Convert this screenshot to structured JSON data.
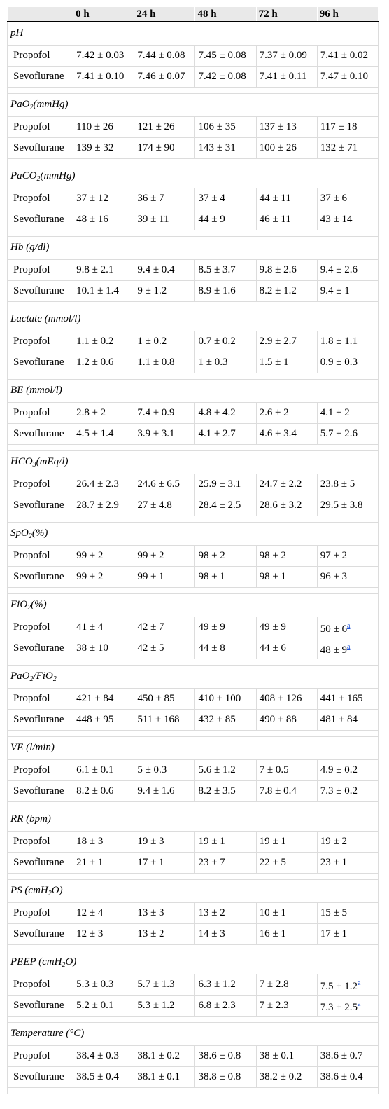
{
  "header": {
    "col0": "",
    "cols": [
      "0 h",
      "24 h",
      "48 h",
      "72 h",
      "96 h"
    ]
  },
  "sections": [
    {
      "pre": "pH",
      "sub": "",
      "post": "",
      "sub2": "",
      "rows": [
        {
          "name": "Propofol",
          "values": [
            "7.42 ± 0.03",
            "7.44 ± 0.08",
            "7.45 ± 0.08",
            "7.37 ± 0.09",
            "7.41 ± 0.02"
          ]
        },
        {
          "name": "Sevoflurane",
          "values": [
            "7.41 ± 0.10",
            "7.46 ± 0.07",
            "7.42 ± 0.08",
            "7.41 ± 0.11",
            "7.47 ± 0.10"
          ]
        }
      ]
    },
    {
      "pre": "PaO",
      "sub": "2",
      "post": "(mmHg)",
      "sub2": "",
      "rows": [
        {
          "name": "Propofol",
          "values": [
            "110 ± 26",
            "121 ± 26",
            "106 ± 35",
            "137 ± 13",
            "117 ± 18"
          ]
        },
        {
          "name": "Sevoflurane",
          "values": [
            "139 ± 32",
            "174 ± 90",
            "143 ± 31",
            "100 ± 26",
            "132 ± 71"
          ]
        }
      ]
    },
    {
      "pre": "PaCO",
      "sub": "2",
      "post": "(mmHg)",
      "sub2": "",
      "rows": [
        {
          "name": "Propofol",
          "values": [
            "37 ± 12",
            "36 ± 7",
            "37 ± 4",
            "44 ± 11",
            "37 ± 6"
          ]
        },
        {
          "name": "Sevoflurane",
          "values": [
            "48 ± 16",
            "39 ± 11",
            "44 ± 9",
            "46 ± 11",
            "43 ± 14"
          ]
        }
      ]
    },
    {
      "pre": "Hb (g/dl)",
      "sub": "",
      "post": "",
      "sub2": "",
      "rows": [
        {
          "name": "Propofol",
          "values": [
            "9.8 ± 2.1",
            "9.4 ± 0.4",
            "8.5 ± 3.7",
            "9.8 ± 2.6",
            "9.4 ± 2.6"
          ]
        },
        {
          "name": "Sevoflurane",
          "values": [
            "10.1 ± 1.4",
            "9 ± 1.2",
            "8.9 ± 1.6",
            "8.2 ± 1.2",
            "9.4 ± 1"
          ]
        }
      ]
    },
    {
      "pre": "Lactate (mmol/l)",
      "sub": "",
      "post": "",
      "sub2": "",
      "rows": [
        {
          "name": "Propofol",
          "values": [
            "1.1 ± 0.2",
            "1 ± 0.2",
            "0.7 ± 0.2",
            "2.9 ± 2.7",
            "1.8 ± 1.1"
          ]
        },
        {
          "name": "Sevoflurane",
          "values": [
            "1.2 ± 0.6",
            "1.1 ± 0.8",
            "1 ± 0.3",
            "1.5 ± 1",
            "0.9 ± 0.3"
          ]
        }
      ]
    },
    {
      "pre": "BE (mmol/l)",
      "sub": "",
      "post": "",
      "sub2": "",
      "rows": [
        {
          "name": "Propofol",
          "values": [
            "2.8 ± 2",
            "7.4 ± 0.9",
            "4.8 ± 4.2",
            "2.6 ± 2",
            "4.1 ± 2"
          ]
        },
        {
          "name": "Sevoflurane",
          "values": [
            "4.5 ± 1.4",
            "3.9 ± 3.1",
            "4.1 ± 2.7",
            "4.6 ± 3.4",
            "5.7 ± 2.6"
          ]
        }
      ]
    },
    {
      "pre": "HCO",
      "sub": "3",
      "post": "(mEq/l)",
      "sub2": "",
      "rows": [
        {
          "name": "Propofol",
          "values": [
            "26.4 ± 2.3",
            "24.6 ± 6.5",
            "25.9 ± 3.1",
            "24.7 ± 2.2",
            "23.8 ± 5"
          ]
        },
        {
          "name": "Sevoflurane",
          "values": [
            "28.7 ± 2.9",
            "27 ± 4.8",
            "28.4 ± 2.5",
            "28.6 ± 3.2",
            "29.5 ± 3.8"
          ]
        }
      ]
    },
    {
      "pre": "SpO",
      "sub": "2",
      "post": "(%)",
      "sub2": "",
      "rows": [
        {
          "name": "Propofol",
          "values": [
            "99 ± 2",
            "99 ± 2",
            "98 ± 2",
            "98 ± 2",
            "97 ± 2"
          ]
        },
        {
          "name": "Sevoflurane",
          "values": [
            "99 ± 2",
            "99 ± 1",
            "98 ± 1",
            "98 ± 1",
            "96 ± 3"
          ]
        }
      ]
    },
    {
      "pre": "FiO",
      "sub": "2",
      "post": "(%)",
      "sub2": "",
      "rows": [
        {
          "name": "Propofol",
          "values": [
            "41 ± 4",
            "42 ± 7",
            "49 ± 9",
            "49 ± 9",
            "50 ± 6"
          ],
          "sup": [
            "",
            "",
            "",
            "",
            "a"
          ]
        },
        {
          "name": "Sevoflurane",
          "values": [
            "38 ± 10",
            "42 ± 5",
            "44 ± 8",
            "44 ± 6",
            "48 ± 9"
          ],
          "sup": [
            "",
            "",
            "",
            "",
            "a"
          ]
        }
      ]
    },
    {
      "pre": "PaO",
      "sub": "2",
      "post": "/FiO",
      "sub2": "2",
      "rows": [
        {
          "name": "Propofol",
          "values": [
            "421 ± 84",
            "450 ± 85",
            "410 ± 100",
            "408 ± 126",
            "441 ± 165"
          ]
        },
        {
          "name": "Sevoflurane",
          "values": [
            "448 ± 95",
            "511 ± 168",
            "432 ± 85",
            "490 ± 88",
            "481 ± 84"
          ]
        }
      ]
    },
    {
      "pre": "VE (l/min)",
      "sub": "",
      "post": "",
      "sub2": "",
      "rows": [
        {
          "name": "Propofol",
          "values": [
            "6.1 ± 0.1",
            "5 ± 0.3",
            "5.6 ± 1.2",
            "7 ± 0.5",
            "4.9 ± 0.2"
          ]
        },
        {
          "name": "Sevoflurane",
          "values": [
            "8.2 ± 0.6",
            "9.4 ± 1.6",
            "8.2 ± 3.5",
            "7.8 ± 0.4",
            "7.3 ± 0.2"
          ]
        }
      ]
    },
    {
      "pre": "RR (bpm)",
      "sub": "",
      "post": "",
      "sub2": "",
      "rows": [
        {
          "name": "Propofol",
          "values": [
            "18 ± 3",
            "19 ± 3",
            "19 ± 1",
            "19 ± 1",
            "19 ± 2"
          ]
        },
        {
          "name": "Sevoflurane",
          "values": [
            "21 ± 1",
            "17 ± 1",
            "23 ± 7",
            "22 ± 5",
            "23 ± 1"
          ]
        }
      ]
    },
    {
      "pre": "PS (cmH",
      "sub": "2",
      "post": "O)",
      "sub2": "",
      "rows": [
        {
          "name": "Propofol",
          "values": [
            "12 ± 4",
            "13 ± 3",
            "13 ± 2",
            "10 ± 1",
            "15 ± 5"
          ]
        },
        {
          "name": "Sevoflurane",
          "values": [
            "12 ± 3",
            "13 ± 2",
            "14 ± 3",
            "16 ± 1",
            "17 ± 1"
          ]
        }
      ]
    },
    {
      "pre": "PEEP (cmH",
      "sub": "2",
      "post": "O)",
      "sub2": "",
      "rows": [
        {
          "name": "Propofol",
          "values": [
            "5.3 ± 0.3",
            "5.7 ± 1.3",
            "6.3 ± 1.2",
            "7 ± 2.8",
            "7.5 ± 1.2"
          ],
          "sup": [
            "",
            "",
            "",
            "",
            "a"
          ]
        },
        {
          "name": "Sevoflurane",
          "values": [
            "5.2 ± 0.1",
            "5.3 ± 1.2",
            "6.8 ± 2.3",
            "7 ± 2.3",
            "7.3 ± 2.5"
          ],
          "sup": [
            "",
            "",
            "",
            "",
            "a"
          ]
        }
      ]
    },
    {
      "pre": "Temperature (°C)",
      "sub": "",
      "post": "",
      "sub2": "",
      "rows": [
        {
          "name": "Propofol",
          "values": [
            "38.4 ± 0.3",
            "38.1 ± 0.2",
            "38.6 ± 0.8",
            "38 ± 0.1",
            "38.6 ± 0.7"
          ]
        },
        {
          "name": "Sevoflurane",
          "values": [
            "38.5 ± 0.4",
            "38.1 ± 0.1",
            "38.8 ± 0.8",
            "38.2 ± 0.2",
            "38.6 ± 0.4"
          ]
        }
      ]
    }
  ]
}
